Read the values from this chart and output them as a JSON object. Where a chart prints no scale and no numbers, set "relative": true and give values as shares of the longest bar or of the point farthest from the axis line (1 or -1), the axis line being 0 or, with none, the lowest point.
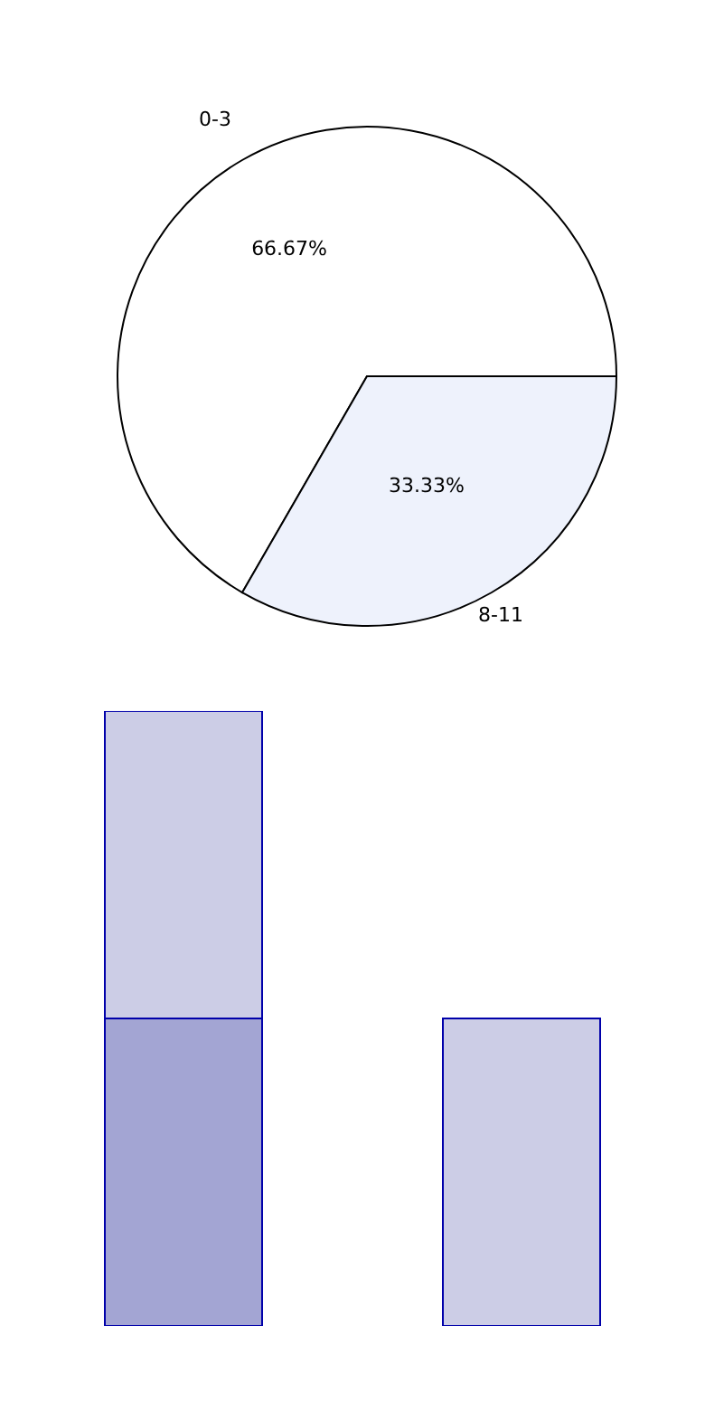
{
  "chart_data": [
    {
      "type": "pie",
      "categories": [
        "0-3",
        "8-11"
      ],
      "values": [
        66.67,
        33.33
      ],
      "colors": [
        "#ffffff",
        "#eef2fc"
      ],
      "value_labels": [
        "66.67%",
        "33.33%"
      ]
    },
    {
      "type": "bar",
      "relative": true,
      "stacked": true,
      "categories": [
        null,
        null
      ],
      "series": [
        {
          "color": "#a3a5d3",
          "values": [
            0.5,
            null
          ]
        },
        {
          "color": "#cccde6",
          "values": [
            0.5,
            0.5
          ]
        }
      ]
    }
  ]
}
